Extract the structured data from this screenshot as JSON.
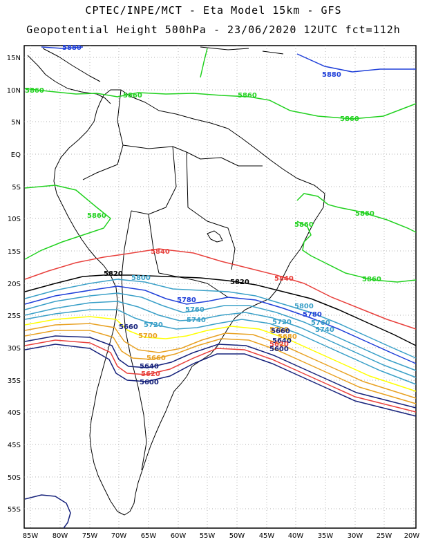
{
  "title_line1": "CPTEC/INPE/MCT -  Eta Model 15km - GFS",
  "title_line2": "Geopotential Height 500hPa - 23/06/2020 12UTC fct=112h",
  "latitude_ticks": [
    "15N",
    "10N",
    "5N",
    "EQ",
    "5S",
    "10S",
    "15S",
    "20S",
    "25S",
    "30S",
    "35S",
    "40S",
    "45S",
    "50S",
    "55S"
  ],
  "longitude_ticks": [
    "85W",
    "80W",
    "75W",
    "70W",
    "65W",
    "60W",
    "55W",
    "50W",
    "45W",
    "40W",
    "35W",
    "30W",
    "25W",
    "20W"
  ],
  "contours": [
    {
      "value": "5880",
      "color": "#1f3fd9"
    },
    {
      "value": "5860",
      "color": "#21d11f"
    },
    {
      "value": "5840",
      "color": "#e8403c"
    },
    {
      "value": "5820",
      "color": "#000000"
    },
    {
      "value": "5800",
      "color": "#3aa0c8"
    },
    {
      "value": "5780",
      "color": "#1f3fd9"
    },
    {
      "value": "5760",
      "color": "#3aa0c8"
    },
    {
      "value": "5740",
      "color": "#3aa0c8"
    },
    {
      "value": "5720",
      "color": "#3aa0c8"
    },
    {
      "value": "5700",
      "color": "#ffff00"
    },
    {
      "value": "5680",
      "color": "#e8a020"
    },
    {
      "value": "5660",
      "color": "#e8a020"
    },
    {
      "value": "5640",
      "color": "#14207a"
    },
    {
      "value": "5620",
      "color": "#e8403c"
    },
    {
      "value": "5600",
      "color": "#14207a"
    }
  ]
}
